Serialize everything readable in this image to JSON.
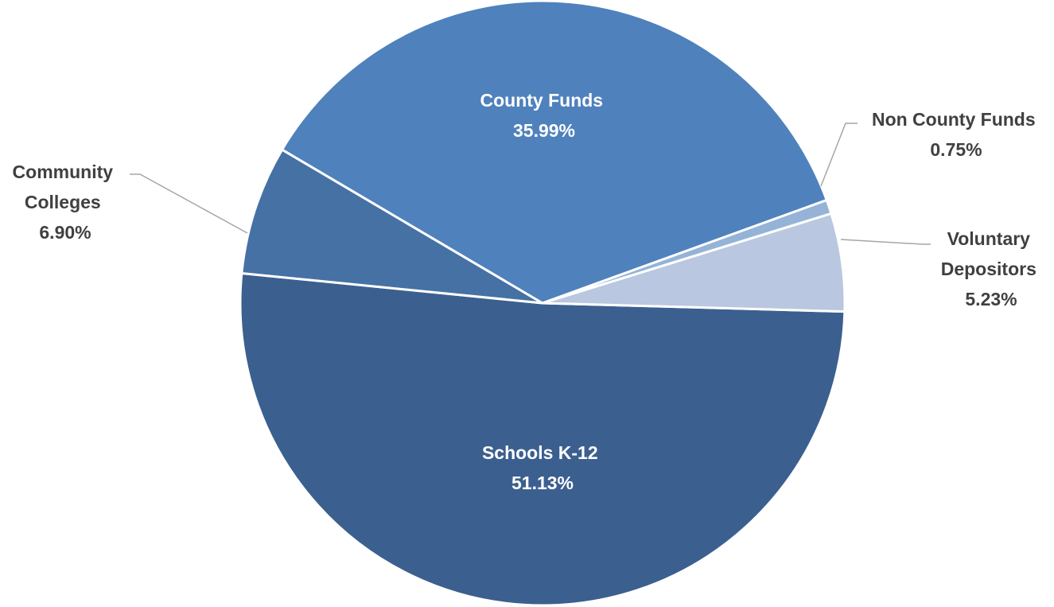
{
  "chart_data": {
    "type": "pie",
    "slices": [
      {
        "label": "Schools K-12",
        "value": 51.13,
        "value_label": "51.13%",
        "color": "#3b5f8f"
      },
      {
        "label": "Community Colleges",
        "value": 6.9,
        "value_label": "6.90%",
        "color": "#4671a5"
      },
      {
        "label": "County Funds",
        "value": 35.99,
        "value_label": "35.99%",
        "color": "#4f81bd"
      },
      {
        "label": "Non County Funds",
        "value": 0.75,
        "value_label": "0.75%",
        "color": "#95b3d7"
      },
      {
        "label": "Voluntary Depositors",
        "value": 5.23,
        "value_label": "5.23%",
        "color": "#b9c7e0"
      }
    ],
    "title": "",
    "legend": "none",
    "label_position": "mixed: inside for large slices, outside with leader lines for small slices"
  }
}
